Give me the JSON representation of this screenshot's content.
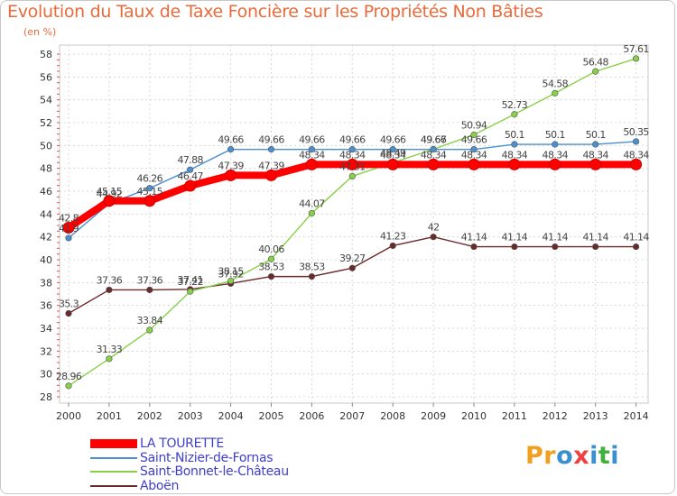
{
  "header": {
    "title": "Evolution du Taux de Taxe Foncière sur les Propriétés Non Bâties",
    "unit": "(en %)"
  },
  "logo": {
    "letters": [
      "P",
      "r",
      "o",
      "x",
      "i",
      "t",
      "i"
    ],
    "colors": [
      "#f0a020",
      "#f0a020",
      "#3a8fd0",
      "#f04040",
      "#3a8fd0",
      "#40b040",
      "#3a8fd0"
    ]
  },
  "chart_data": {
    "type": "line",
    "x": [
      2000,
      2001,
      2002,
      2003,
      2004,
      2005,
      2006,
      2007,
      2008,
      2009,
      2010,
      2011,
      2012,
      2013,
      2014
    ],
    "ylim": [
      28,
      58
    ],
    "yticks": [
      28,
      30,
      32,
      34,
      36,
      38,
      40,
      42,
      44,
      46,
      48,
      50,
      52,
      54,
      56,
      58
    ],
    "grid": true,
    "legend_position": "bottom-left",
    "series": [
      {
        "name": "LA TOURETTE",
        "color": "#ff0000",
        "values": [
          42.8,
          45.15,
          45.15,
          46.47,
          47.39,
          47.39,
          48.34,
          48.34,
          48.34,
          48.34,
          48.34,
          48.34,
          48.34,
          48.34,
          48.34
        ],
        "labels": [
          "42.8",
          "45.15",
          "45.15",
          "46.47",
          "47.39",
          "47.39",
          "48.34",
          "48.34",
          "48.34",
          "48.34",
          "48.34",
          "48.34",
          "48.34",
          "48.34",
          "48.34"
        ]
      },
      {
        "name": "Saint-Nizier-de-Fornas",
        "color": "#4a90d0",
        "values": [
          41.9,
          44.92,
          46.26,
          47.88,
          49.66,
          49.66,
          49.66,
          49.66,
          49.66,
          49.66,
          49.66,
          50.1,
          50.1,
          50.1,
          50.35
        ],
        "labels": [
          "41.9",
          "44.92",
          "46.26",
          "47.88",
          "49.66",
          "49.66",
          "49.66",
          "49.66",
          "49.66",
          "49.66",
          "49.66",
          "50.1",
          "50.1",
          "50.1",
          "50.35"
        ]
      },
      {
        "name": "Saint-Bonnet-le-Château",
        "color": "#88d048",
        "values": [
          28.96,
          31.33,
          33.84,
          37.22,
          38.15,
          40.06,
          44.07,
          47.31,
          48.49,
          49.67,
          50.94,
          52.73,
          54.58,
          56.48,
          57.61
        ],
        "labels": [
          "28.96",
          "31.33",
          "33.84",
          "37.22",
          "38.15",
          "40.06",
          "44.07",
          "47.31",
          "48.49",
          "49.67",
          "50.94",
          "52.73",
          "54.58",
          "56.48",
          "57.61"
        ]
      },
      {
        "name": "Aboën",
        "color": "#6b2a2a",
        "values": [
          35.3,
          37.36,
          37.36,
          37.41,
          37.92,
          38.53,
          38.53,
          39.27,
          41.23,
          42,
          41.14,
          41.14,
          41.14,
          41.14,
          41.14
        ],
        "labels": [
          "35.3",
          "37.36",
          "37.36",
          "37.41",
          "37.92",
          "38.53",
          "38.53",
          "39.27",
          "41.23",
          "42",
          "41.14",
          "41.14",
          "41.14",
          "41.14",
          "41.14"
        ]
      }
    ]
  }
}
